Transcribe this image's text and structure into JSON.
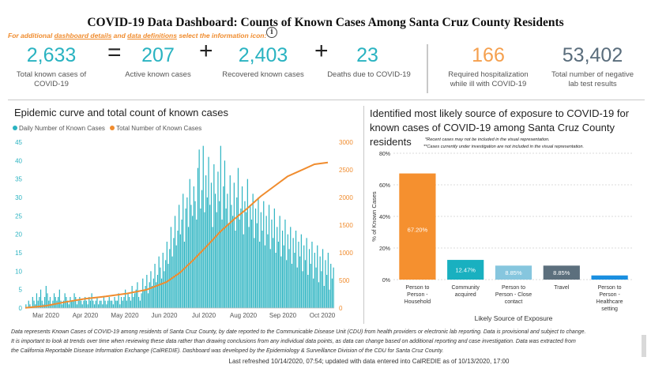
{
  "title": "COVID-19 Data Dashboard: Counts of Known Cases Among Santa Cruz County Residents",
  "info_line": {
    "prefix": "For additional ",
    "link1": "dashboard details",
    "middle": " and ",
    "link2": "data definitions",
    "suffix": " select the information icon:",
    "icon": "info-icon"
  },
  "kpis": {
    "total": {
      "value": "2,633",
      "label_line1": "Total known cases of",
      "label_line2": "COVID-19"
    },
    "active": {
      "value": "207",
      "label": "Active known cases"
    },
    "recovered": {
      "value": "2,403",
      "label": "Recovered known cases"
    },
    "deaths": {
      "value": "23",
      "label": "Deaths due to COVID-19"
    },
    "hospital": {
      "value": "166",
      "label_line1": "Required hospitalization",
      "label_line2": "while ill with COVID-19",
      "color": "#f5a04e"
    },
    "negative": {
      "value": "53,402",
      "label_line1": "Total number of negative",
      "label_line2": "lab test results",
      "color": "#5a6d7c"
    },
    "op_equals": "=",
    "op_plus": "+"
  },
  "epi": {
    "title": "Epidemic curve and total count of known cases",
    "legend_daily": "Daily Number of Known Cases",
    "legend_total": "Total Number of Known Cases",
    "daily_color": "#2ab3c1",
    "total_color": "#f08c2e"
  },
  "exposure": {
    "title_line1": "Identified most likely source of exposure to COVID-19 for",
    "title_line2": "known cases of COVID-19 among Santa Cruz County",
    "title_line3": "residents",
    "note1": "*Recent cases may not be included in the visual representation.",
    "note2": "**Cases currently under investigation are not included in the visual representation."
  },
  "chart_data": [
    {
      "type": "bar+line",
      "title": "Epidemic curve and total count of known cases",
      "x_tick_labels": [
        "Mar 2020",
        "Apr 2020",
        "May 2020",
        "Jun 2020",
        "Jul 2020",
        "Aug 2020",
        "Sep 2020",
        "Oct 2020"
      ],
      "x_range": [
        "2020-03-01",
        "2020-10-14"
      ],
      "y_left_ticks": [
        0,
        5,
        10,
        15,
        20,
        25,
        30,
        35,
        40,
        45
      ],
      "y_right_ticks": [
        0,
        500,
        1000,
        1500,
        2000,
        2500,
        3000
      ],
      "ylim_left": [
        0,
        45
      ],
      "ylim_right": [
        0,
        3000
      ],
      "series": [
        {
          "name": "Daily Number of Known Cases",
          "type": "bar",
          "axis": "left",
          "color": "#2ab3c1",
          "values": [
            1,
            0,
            2,
            1,
            0,
            3,
            2,
            1,
            4,
            2,
            3,
            5,
            2,
            1,
            3,
            6,
            4,
            2,
            3,
            1,
            2,
            4,
            3,
            2,
            3,
            5,
            2,
            1,
            2,
            4,
            3,
            2,
            1,
            3,
            2,
            2,
            4,
            3,
            1,
            2,
            3,
            2,
            1,
            2,
            3,
            2,
            1,
            3,
            2,
            4,
            2,
            1,
            2,
            3,
            1,
            2,
            2,
            1,
            3,
            2,
            1,
            2,
            3,
            2,
            2,
            1,
            3,
            2,
            2,
            4,
            1,
            3,
            2,
            3,
            5,
            2,
            4,
            3,
            2,
            6,
            3,
            4,
            5,
            7,
            3,
            2,
            4,
            8,
            5,
            6,
            9,
            4,
            7,
            10,
            6,
            8,
            12,
            7,
            9,
            14,
            11,
            8,
            15,
            10,
            13,
            18,
            12,
            16,
            22,
            14,
            19,
            25,
            17,
            21,
            28,
            20,
            24,
            31,
            18,
            27,
            30,
            22,
            35,
            28,
            25,
            33,
            29,
            24,
            38,
            43,
            27,
            32,
            44,
            26,
            36,
            30,
            41,
            28,
            34,
            22,
            39,
            31,
            26,
            37,
            29,
            44,
            24,
            33,
            40,
            27,
            31,
            23,
            36,
            28,
            25,
            34,
            21,
            30,
            38,
            24,
            27,
            33,
            20,
            29,
            26,
            35,
            22,
            28,
            24,
            31,
            19,
            27,
            23,
            30,
            18,
            26,
            21,
            29,
            17,
            25,
            20,
            28,
            16,
            24,
            19,
            27,
            15,
            22,
            18,
            25,
            14,
            21,
            17,
            24,
            13,
            20,
            16,
            22,
            12,
            19,
            15,
            21,
            11,
            18,
            14,
            20,
            10,
            17,
            13,
            19,
            9,
            16,
            12,
            18,
            8,
            15,
            11,
            17,
            7,
            14,
            10,
            16,
            6,
            13,
            9,
            15,
            5,
            12,
            8,
            11
          ]
        },
        {
          "name": "Total Number of Known Cases",
          "type": "line",
          "axis": "right",
          "color": "#f08c2e",
          "points": [
            [
              0,
              5
            ],
            [
              15,
              40
            ],
            [
              30,
              110
            ],
            [
              45,
              170
            ],
            [
              60,
              210
            ],
            [
              75,
              260
            ],
            [
              90,
              330
            ],
            [
              105,
              470
            ],
            [
              115,
              640
            ],
            [
              125,
              870
            ],
            [
              135,
              1120
            ],
            [
              145,
              1380
            ],
            [
              155,
              1600
            ],
            [
              165,
              1800
            ],
            [
              175,
              2020
            ],
            [
              185,
              2200
            ],
            [
              195,
              2380
            ],
            [
              205,
              2490
            ],
            [
              215,
              2600
            ],
            [
              225,
              2633
            ]
          ]
        }
      ]
    },
    {
      "type": "bar",
      "title": "Identified most likely source of exposure to COVID-19 for known cases of COVID-19 among Santa Cruz County residents",
      "xlabel": "Likely Source of Exposure",
      "ylabel": "% of Known Cases",
      "ylim": [
        0,
        80
      ],
      "y_ticks": [
        "0%",
        "20%",
        "40%",
        "60%",
        "80%"
      ],
      "categories": [
        [
          "Person to",
          "Person -",
          "Household"
        ],
        [
          "Community",
          "acquired"
        ],
        [
          "Person to",
          "Person - Close",
          "contact"
        ],
        [
          "Travel"
        ],
        [
          "Person to",
          "Person -",
          "Healthcare",
          "setting"
        ]
      ],
      "values": [
        67.2,
        12.47,
        8.85,
        8.85,
        2.63
      ],
      "data_labels": [
        "67.20%",
        "12.47%",
        "8.85%",
        "8.85%",
        ""
      ],
      "colors": [
        "#f5902f",
        "#19b0c0",
        "#86c6de",
        "#5c6f7d",
        "#1a8fe0"
      ]
    }
  ],
  "footer": {
    "line1": "Data represents Known Cases of COVID-19 among residents of Santa Cruz County, by date reported to the Communicable Disease Unit (CDU) from health providers or electronic lab reporting.  Data is provisional and subject to change.",
    "line2": "It is important to look at trends over time when reviewing these data rather than drawing conclusions from any individual data points, as data can change based on additional reporting and case investigation.  Data was extracted from",
    "line3": "the California Reportable Disease Information Exchange (CalREDIE).  Dashboard was developed by the Epidemiology & Surveillance Division of the CDU for Santa Cruz County.",
    "refreshed": "Last refreshed 10/14/2020, 07:54; updated with data entered into CalREDIE as of 10/13/2020, 17:00"
  }
}
